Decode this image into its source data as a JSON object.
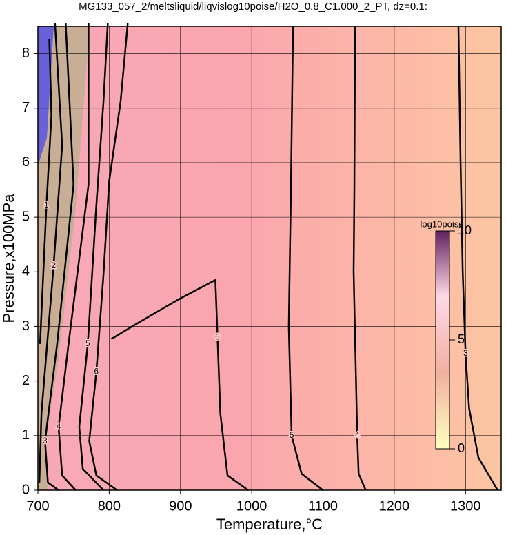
{
  "chart_data": {
    "type": "contour",
    "title": "MG133_057_2/meltsliquid/liqvislog10poise/H2O_0.8_C1.000_2_PT, dz=0.1:",
    "xlabel": "Temperature,°C",
    "ylabel": "Pressure,x100MPa",
    "xlim": [
      700,
      1350
    ],
    "ylim": [
      0,
      8.5
    ],
    "xticks": [
      700,
      800,
      900,
      1000,
      1100,
      1200,
      1300
    ],
    "yticks": [
      0,
      1,
      2,
      3,
      4,
      5,
      6,
      7,
      8
    ],
    "grid": true,
    "contours": [
      {
        "level": 1,
        "x": [
          716,
          719,
          712,
          703
        ],
        "y": [
          8.27,
          6.87,
          5.22,
          2.68
        ]
      },
      {
        "level": 2,
        "x": [
          724,
          734,
          722,
          705,
          702
        ],
        "y": [
          8.55,
          6.32,
          4.11,
          1.41,
          0.14
        ]
      },
      {
        "level": 3,
        "x": [
          739,
          750,
          727,
          710,
          714,
          729
        ],
        "y": [
          8.55,
          5.6,
          2.68,
          0.9,
          0.14,
          0
        ]
      },
      {
        "level": 4,
        "x": [
          771,
          771,
          743,
          729,
          734,
          753
        ],
        "y": [
          8.55,
          5.6,
          2.68,
          1.16,
          0.27,
          0
        ]
      },
      {
        "level": 5,
        "x": [
          798,
          792,
          782,
          770,
          758,
          763,
          792
        ],
        "y": [
          8.55,
          7.12,
          5.22,
          2.68,
          1.16,
          0.39,
          0
        ]
      },
      {
        "level": 6,
        "x": [
          826,
          816,
          800,
          792,
          782,
          772,
          782,
          811
        ],
        "y": [
          8.55,
          7.12,
          5.66,
          3.95,
          2.17,
          0.9,
          0.27,
          0
        ]
      },
      {
        "level": 6,
        "x": [
          803,
          840,
          898,
          949,
          952,
          956,
          966,
          995
        ],
        "y": [
          2.77,
          3.06,
          3.5,
          3.85,
          2.8,
          1.4,
          0.27,
          0
        ]
      },
      {
        "level": 5,
        "x": [
          1058,
          1055,
          1052,
          1056,
          1070,
          1100
        ],
        "y": [
          8.5,
          5.5,
          3,
          1,
          0.3,
          0
        ]
      },
      {
        "level": 4,
        "x": [
          1145,
          1144,
          1143,
          1148,
          1150,
          1160
        ],
        "y": [
          8.5,
          5.5,
          4,
          1,
          0.3,
          0
        ]
      },
      {
        "level": 3,
        "x": [
          1290,
          1293,
          1296,
          1300,
          1305,
          1318,
          1345
        ],
        "y": [
          8.5,
          6,
          4,
          2.5,
          1.5,
          0.6,
          0
        ]
      }
    ],
    "colorbar": {
      "title": "log10poise",
      "lim": [
        0,
        10
      ],
      "ticks": [
        0,
        5,
        10
      ]
    }
  }
}
